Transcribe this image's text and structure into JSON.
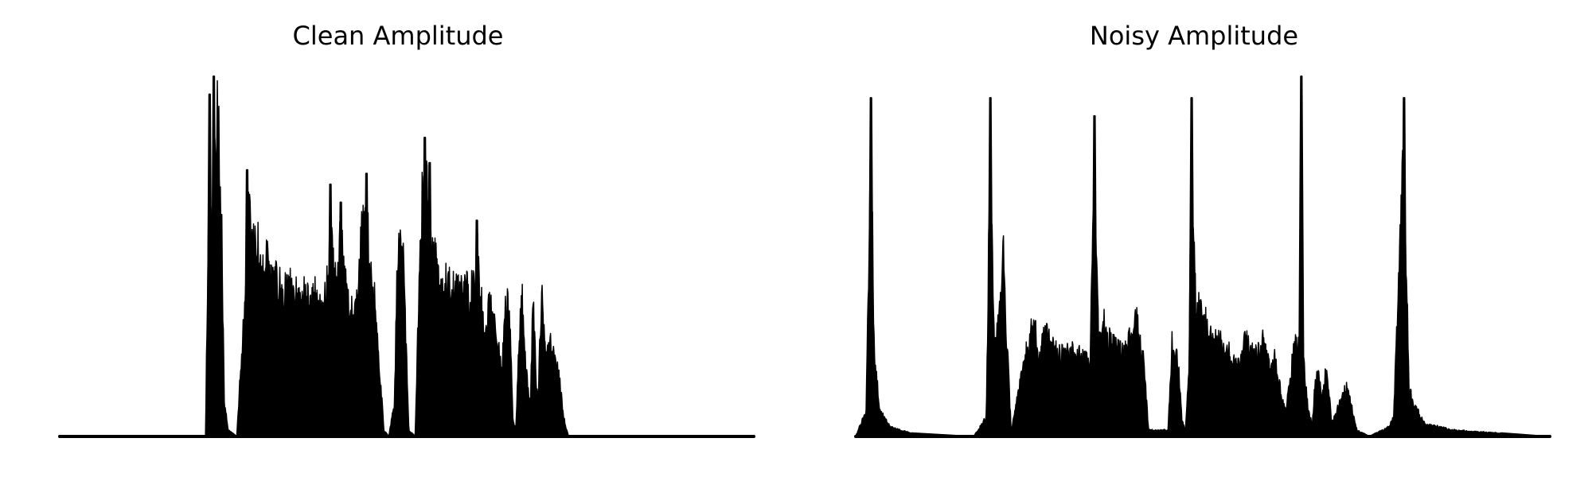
{
  "chart_data": [
    {
      "type": "area",
      "title": "Clean Amplitude",
      "axes_visible": false,
      "color": "#000000",
      "ylim": [
        0,
        1
      ],
      "x_range": [
        0,
        1
      ],
      "anchors": [
        [
          0,
          0
        ],
        [
          0.21,
          0
        ],
        [
          0.214,
          0.66
        ],
        [
          0.22,
          0.7
        ],
        [
          0.224,
          0.95
        ],
        [
          0.228,
          1.0
        ],
        [
          0.233,
          0.72
        ],
        [
          0.237,
          0.12
        ],
        [
          0.243,
          0.02
        ],
        [
          0.255,
          0
        ],
        [
          0.27,
          0.55
        ],
        [
          0.273,
          0.74
        ],
        [
          0.277,
          0.6
        ],
        [
          0.283,
          0.63
        ],
        [
          0.288,
          0.58
        ],
        [
          0.294,
          0.52
        ],
        [
          0.3,
          0.58
        ],
        [
          0.306,
          0.47
        ],
        [
          0.312,
          0.49
        ],
        [
          0.318,
          0.47
        ],
        [
          0.324,
          0.45
        ],
        [
          0.33,
          0.49
        ],
        [
          0.336,
          0.43
        ],
        [
          0.342,
          0.47
        ],
        [
          0.348,
          0.42
        ],
        [
          0.354,
          0.46
        ],
        [
          0.36,
          0.4
        ],
        [
          0.366,
          0.46
        ],
        [
          0.372,
          0.42
        ],
        [
          0.38,
          0.38
        ],
        [
          0.386,
          0.53
        ],
        [
          0.39,
          0.7
        ],
        [
          0.395,
          0.5
        ],
        [
          0.4,
          0.47
        ],
        [
          0.405,
          0.65
        ],
        [
          0.41,
          0.5
        ],
        [
          0.418,
          0.4
        ],
        [
          0.425,
          0.38
        ],
        [
          0.43,
          0.45
        ],
        [
          0.436,
          0.7
        ],
        [
          0.442,
          0.73
        ],
        [
          0.448,
          0.5
        ],
        [
          0.455,
          0.41
        ],
        [
          0.46,
          0.25
        ],
        [
          0.467,
          0.02
        ],
        [
          0.474,
          0
        ],
        [
          0.482,
          0.1
        ],
        [
          0.486,
          0.5
        ],
        [
          0.49,
          0.62
        ],
        [
          0.495,
          0.55
        ],
        [
          0.499,
          0.3
        ],
        [
          0.503,
          0.02
        ],
        [
          0.512,
          0
        ],
        [
          0.518,
          0.5
        ],
        [
          0.522,
          0.75
        ],
        [
          0.526,
          0.83
        ],
        [
          0.532,
          0.7
        ],
        [
          0.538,
          0.58
        ],
        [
          0.544,
          0.52
        ],
        [
          0.55,
          0.5
        ],
        [
          0.556,
          0.49
        ],
        [
          0.562,
          0.47
        ],
        [
          0.568,
          0.49
        ],
        [
          0.576,
          0.46
        ],
        [
          0.584,
          0.5
        ],
        [
          0.59,
          0.45
        ],
        [
          0.596,
          0.47
        ],
        [
          0.601,
          0.6
        ],
        [
          0.607,
          0.45
        ],
        [
          0.613,
          0.3
        ],
        [
          0.619,
          0.45
        ],
        [
          0.625,
          0.4
        ],
        [
          0.631,
          0.3
        ],
        [
          0.637,
          0.2
        ],
        [
          0.643,
          0.45
        ],
        [
          0.649,
          0.38
        ],
        [
          0.653,
          0.05
        ],
        [
          0.657,
          0.02
        ],
        [
          0.662,
          0.3
        ],
        [
          0.666,
          0.44
        ],
        [
          0.672,
          0.2
        ],
        [
          0.678,
          0.1
        ],
        [
          0.682,
          0.45
        ],
        [
          0.686,
          0.2
        ],
        [
          0.689,
          0.1
        ],
        [
          0.694,
          0.46
        ],
        [
          0.7,
          0.25
        ],
        [
          0.706,
          0.32
        ],
        [
          0.712,
          0.28
        ],
        [
          0.719,
          0.2
        ],
        [
          0.726,
          0.06
        ],
        [
          0.733,
          0
        ],
        [
          1,
          0
        ]
      ],
      "spikes": [
        [
          0.216,
          0.95
        ],
        [
          0.222,
          1.0
        ],
        [
          0.27,
          0.74
        ],
        [
          0.39,
          0.7
        ],
        [
          0.405,
          0.65
        ],
        [
          0.442,
          0.73
        ],
        [
          0.526,
          0.83
        ],
        [
          0.533,
          0.76
        ],
        [
          0.601,
          0.6
        ]
      ]
    },
    {
      "type": "area",
      "title": "Noisy Amplitude",
      "axes_visible": false,
      "color": "#000000",
      "ylim": [
        0,
        1
      ],
      "x_range": [
        0,
        1
      ],
      "anchors": [
        [
          0,
          0
        ],
        [
          0.015,
          0.08
        ],
        [
          0.022,
          0.94
        ],
        [
          0.027,
          0.25
        ],
        [
          0.035,
          0.08
        ],
        [
          0.05,
          0.03
        ],
        [
          0.08,
          0.01
        ],
        [
          0.17,
          0
        ],
        [
          0.188,
          0.06
        ],
        [
          0.194,
          0.94
        ],
        [
          0.2,
          0.3
        ],
        [
          0.207,
          0.38
        ],
        [
          0.212,
          0.6
        ],
        [
          0.218,
          0.3
        ],
        [
          0.224,
          0.02
        ],
        [
          0.258,
          0.4
        ],
        [
          0.263,
          0.22
        ],
        [
          0.27,
          0.33
        ],
        [
          0.28,
          0.3
        ],
        [
          0.29,
          0.28
        ],
        [
          0.3,
          0.25
        ],
        [
          0.31,
          0.27
        ],
        [
          0.32,
          0.26
        ],
        [
          0.33,
          0.24
        ],
        [
          0.338,
          0.26
        ],
        [
          0.344,
          0.89
        ],
        [
          0.35,
          0.29
        ],
        [
          0.356,
          0.4
        ],
        [
          0.362,
          0.31
        ],
        [
          0.37,
          0.3
        ],
        [
          0.378,
          0.28
        ],
        [
          0.386,
          0.26
        ],
        [
          0.392,
          0.3
        ],
        [
          0.398,
          0.32
        ],
        [
          0.405,
          0.38
        ],
        [
          0.41,
          0.31
        ],
        [
          0.416,
          0.21
        ],
        [
          0.422,
          0.02
        ],
        [
          0.45,
          0.02
        ],
        [
          0.456,
          0.31
        ],
        [
          0.464,
          0.25
        ],
        [
          0.47,
          0.05
        ],
        [
          0.475,
          0.02
        ],
        [
          0.48,
          0.2
        ],
        [
          0.484,
          0.94
        ],
        [
          0.49,
          0.4
        ],
        [
          0.497,
          0.44
        ],
        [
          0.503,
          0.38
        ],
        [
          0.508,
          0.31
        ],
        [
          0.515,
          0.32
        ],
        [
          0.522,
          0.3
        ],
        [
          0.53,
          0.29
        ],
        [
          0.54,
          0.26
        ],
        [
          0.55,
          0.22
        ],
        [
          0.56,
          0.3
        ],
        [
          0.566,
          0.3
        ],
        [
          0.573,
          0.25
        ],
        [
          0.58,
          0.27
        ],
        [
          0.586,
          0.3
        ],
        [
          0.592,
          0.26
        ],
        [
          0.598,
          0.2
        ],
        [
          0.604,
          0.26
        ],
        [
          0.608,
          0.2
        ],
        [
          0.614,
          0.12
        ],
        [
          0.62,
          0.08
        ],
        [
          0.63,
          0.26
        ],
        [
          0.636,
          0.3
        ],
        [
          0.642,
          0.24
        ],
        [
          0.646,
          0.22
        ],
        [
          0.652,
          0.08
        ],
        [
          0.658,
          0.04
        ],
        [
          0.662,
          0.18
        ],
        [
          0.667,
          0.19
        ],
        [
          0.672,
          0.12
        ],
        [
          0.676,
          0.2
        ],
        [
          0.68,
          0.18
        ],
        [
          0.686,
          0.04
        ],
        [
          0.7,
          0.12
        ],
        [
          0.708,
          0.16
        ],
        [
          0.712,
          0.12
        ],
        [
          0.716,
          0.08
        ],
        [
          0.722,
          0.02
        ],
        [
          0.74,
          0
        ],
        [
          0.768,
          0.03
        ],
        [
          0.775,
          0.06
        ],
        [
          0.79,
          0.94
        ],
        [
          0.797,
          0.15
        ],
        [
          0.805,
          0.1
        ],
        [
          0.82,
          0.04
        ],
        [
          0.86,
          0.02
        ],
        [
          1,
          0
        ]
      ],
      "spikes": [
        [
          0.022,
          0.94
        ],
        [
          0.194,
          0.94
        ],
        [
          0.344,
          0.89
        ],
        [
          0.484,
          0.94
        ],
        [
          0.642,
          1.0
        ],
        [
          0.79,
          0.94
        ]
      ]
    }
  ]
}
